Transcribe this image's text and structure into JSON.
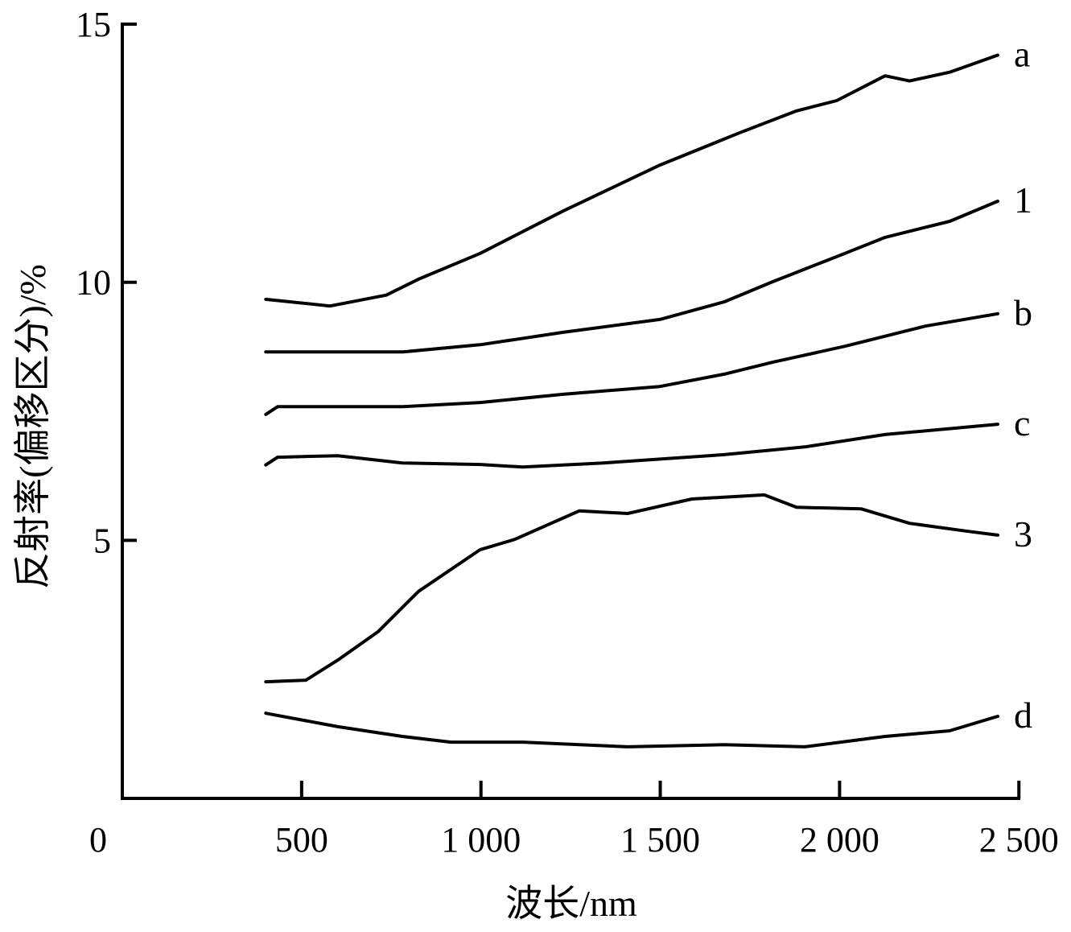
{
  "chart_data": {
    "type": "line",
    "title": "",
    "xlabel": "波长/nm",
    "ylabel": "反射率(偏移区分)/%",
    "xlim": [
      0,
      2500
    ],
    "ylim": [
      0,
      15
    ],
    "x_ticks": [
      0,
      500,
      1000,
      1500,
      2000,
      2500
    ],
    "x_tick_labels": [
      "0",
      "500",
      "1 000",
      "1 500",
      "2 000",
      "2 500"
    ],
    "y_ticks": [
      5,
      10,
      15
    ],
    "y_tick_labels": [
      "5",
      "10",
      "15"
    ],
    "grid": false,
    "legend": "inline labels at right end of each curve",
    "series": [
      {
        "name": "a",
        "x": [
          400,
          579,
          736,
          826,
          998,
          1229,
          1499,
          1723,
          1880,
          1992,
          2127,
          2195,
          2307,
          2441
        ],
        "y": [
          9.67,
          9.54,
          9.75,
          10.06,
          10.56,
          11.38,
          12.27,
          12.9,
          13.32,
          13.52,
          14.0,
          13.9,
          14.07,
          14.4
        ]
      },
      {
        "name": "1",
        "x": [
          400,
          781,
          998,
          1229,
          1499,
          1678,
          1813,
          2015,
          2127,
          2307,
          2441
        ],
        "y": [
          8.65,
          8.65,
          8.79,
          9.03,
          9.28,
          9.62,
          10.01,
          10.56,
          10.87,
          11.18,
          11.57
        ]
      },
      {
        "name": "b",
        "x": [
          400,
          433,
          781,
          998,
          1229,
          1499,
          1678,
          1813,
          2015,
          2239,
          2441
        ],
        "y": [
          7.44,
          7.59,
          7.59,
          7.67,
          7.83,
          7.98,
          8.22,
          8.45,
          8.76,
          9.15,
          9.39
        ]
      },
      {
        "name": "c",
        "x": [
          400,
          433,
          601,
          781,
          998,
          1117,
          1342,
          1678,
          1903,
          2127,
          2441
        ],
        "y": [
          6.46,
          6.61,
          6.64,
          6.5,
          6.47,
          6.42,
          6.5,
          6.66,
          6.81,
          7.05,
          7.25
        ]
      },
      {
        "name": "3",
        "x": [
          400,
          512,
          601,
          713,
          826,
          998,
          1095,
          1274,
          1409,
          1588,
          1790,
          1880,
          2060,
          2195,
          2352,
          2441
        ],
        "y": [
          2.26,
          2.29,
          2.68,
          3.23,
          4.01,
          4.82,
          5.02,
          5.57,
          5.52,
          5.8,
          5.88,
          5.64,
          5.61,
          5.33,
          5.18,
          5.1
        ]
      },
      {
        "name": "d",
        "x": [
          400,
          601,
          781,
          916,
          1117,
          1409,
          1678,
          1903,
          2127,
          2307,
          2441
        ],
        "y": [
          1.65,
          1.39,
          1.2,
          1.09,
          1.09,
          1.0,
          1.04,
          1.0,
          1.2,
          1.31,
          1.59
        ]
      }
    ],
    "series_labels": [
      "a",
      "1",
      "b",
      "c",
      "3",
      "d"
    ],
    "line_color": "#000000"
  }
}
